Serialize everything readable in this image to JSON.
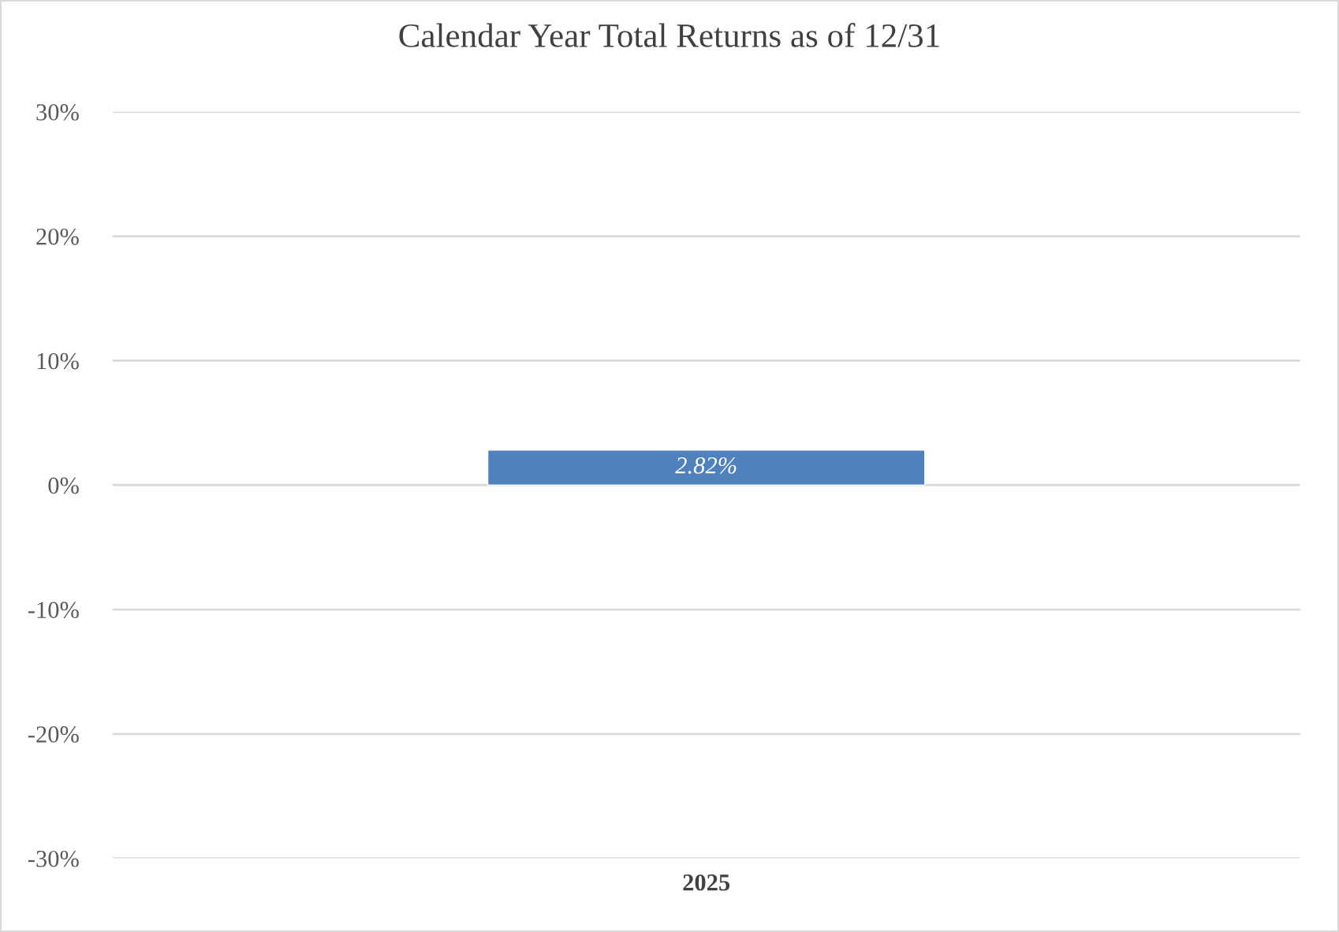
{
  "chart_data": {
    "type": "bar",
    "title": "Calendar Year Total Returns as of 12/31",
    "categories": [
      "2025"
    ],
    "values": [
      2.82
    ],
    "color": "#4f81bd",
    "value_labels": [
      "2.82%"
    ],
    "ylim": [
      -30,
      30
    ],
    "yticks": [
      {
        "value": -30,
        "label": "-30%"
      },
      {
        "value": -20,
        "label": "-20%"
      },
      {
        "value": -10,
        "label": "-10%"
      },
      {
        "value": 0,
        "label": "0%"
      },
      {
        "value": 10,
        "label": "10%"
      },
      {
        "value": 20,
        "label": "20%"
      },
      {
        "value": 30,
        "label": "30%"
      }
    ],
    "grid": "y",
    "legend": false
  }
}
